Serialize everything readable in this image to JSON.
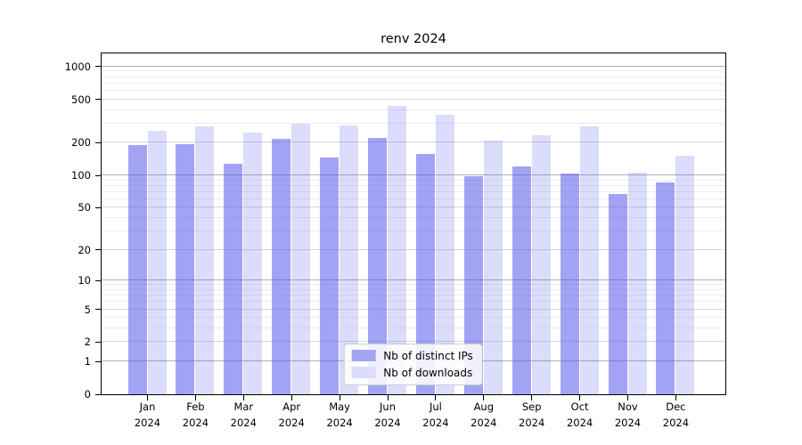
{
  "title": "renv 2024",
  "chart_data": {
    "type": "bar",
    "title": "renv 2024",
    "categories": [
      "Jan 2024",
      "Feb 2024",
      "Mar 2024",
      "Apr 2024",
      "May 2024",
      "Jun 2024",
      "Jul 2024",
      "Aug 2024",
      "Sep 2024",
      "Oct 2024",
      "Nov 2024",
      "Dec 2024"
    ],
    "series": [
      {
        "name": "Nb of distinct IPs",
        "values": [
          190,
          193,
          126,
          216,
          144,
          220,
          156,
          97,
          121,
          103,
          67,
          85
        ]
      },
      {
        "name": "Nb of downloads",
        "values": [
          257,
          281,
          245,
          299,
          284,
          430,
          361,
          209,
          230,
          281,
          106,
          150
        ]
      }
    ],
    "xlabel": "",
    "ylabel": "",
    "yscale": "log1p",
    "ylim": [
      0,
      1330
    ],
    "yticks_labeled": [
      1000,
      500,
      200,
      100,
      50,
      20,
      10,
      5,
      2,
      1,
      0
    ],
    "yticks_minor": [
      3,
      4,
      6,
      7,
      8,
      9,
      30,
      40,
      60,
      70,
      80,
      90,
      300,
      400,
      600,
      700,
      800,
      900
    ],
    "grid": true,
    "legend_position": "lower center"
  },
  "colors": {
    "bar_dark": "rgba(96,96,240,0.58)",
    "bar_light": "rgba(96,96,240,0.22)",
    "legend_swatch_dark": "#a4a4f5",
    "legend_swatch_light": "#dcdcfa",
    "grid_major": "#b0b0b0",
    "grid_mid": "#d7d7d7",
    "grid_minor": "#ececec",
    "axis": "#000000"
  }
}
